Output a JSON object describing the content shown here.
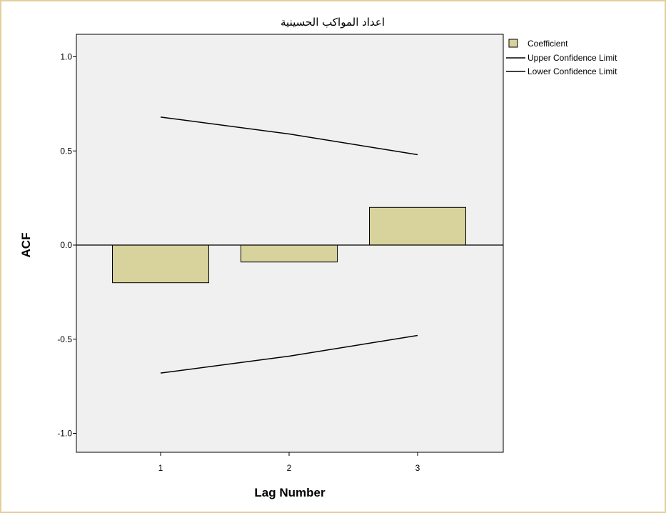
{
  "chart_data": {
    "type": "bar",
    "title": "اعداد المواكب الحسينية",
    "xlabel": "Lag Number",
    "ylabel": "ACF",
    "categories": [
      "1",
      "2",
      "3"
    ],
    "ylim": [
      -1.1,
      1.1
    ],
    "yticks": [
      "1.0",
      "0.5",
      "0.0",
      "-0.5",
      "-1.0"
    ],
    "ytick_values": [
      1.0,
      0.5,
      0.0,
      -0.5,
      -1.0
    ],
    "series": [
      {
        "name": "Coefficient",
        "values": [
          -0.2,
          -0.09,
          0.2
        ]
      },
      {
        "name": "Upper Confidence Limit",
        "values": [
          0.68,
          0.59,
          0.48
        ]
      },
      {
        "name": "Lower Confidence Limit",
        "values": [
          -0.68,
          -0.59,
          -0.48
        ]
      }
    ],
    "legend": "right",
    "grid": false
  },
  "colors": {
    "bar_fill": "#d8d29c",
    "plot_bg": "#f0f0f0",
    "frame_border": "#e3cf9b"
  }
}
